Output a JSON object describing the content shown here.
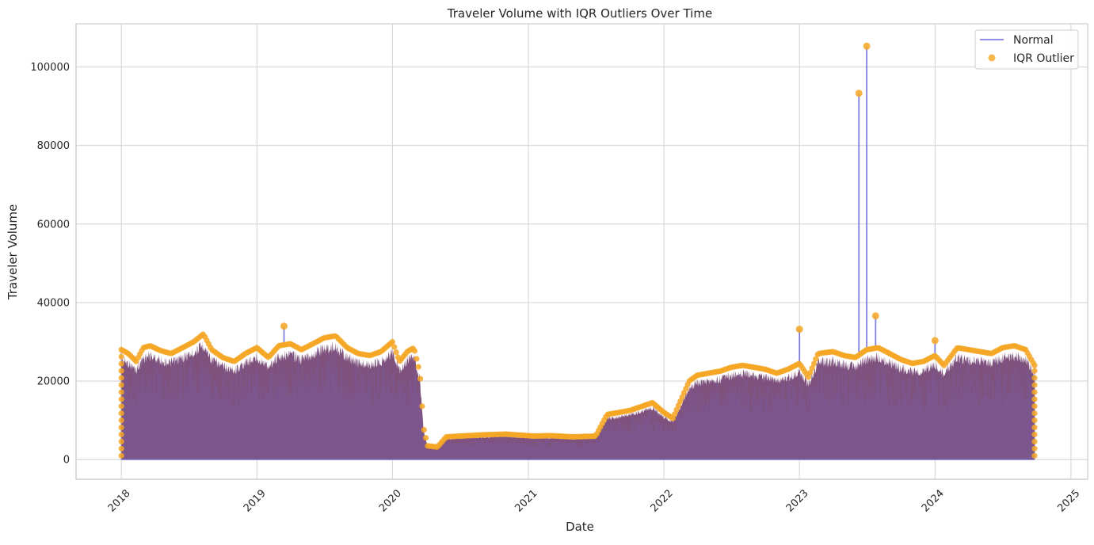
{
  "chart_data": {
    "type": "line",
    "title": "Traveler Volume with IQR Outliers Over Time",
    "xlabel": "Date",
    "ylabel": "Traveler Volume",
    "x_range": [
      "2017-09-01",
      "2025-02-15"
    ],
    "ylim": [
      -5000,
      111000
    ],
    "x_ticks": [
      "2018",
      "2019",
      "2020",
      "2021",
      "2022",
      "2023",
      "2024",
      "2025"
    ],
    "y_ticks": [
      0,
      20000,
      40000,
      60000,
      80000,
      100000
    ],
    "y_tick_labels": [
      "0",
      "20000",
      "40000",
      "60000",
      "80000",
      "100000"
    ],
    "grid": true,
    "legend_position": "top-right",
    "series": [
      {
        "name": "Normal",
        "kind": "line",
        "color": "#6b6bdd"
      },
      {
        "name": "IQR Outlier",
        "kind": "scatter",
        "color": "#f5a623"
      }
    ],
    "fill_color": "#7f527e",
    "upper_envelope": [
      [
        "2018-01-01",
        28000
      ],
      [
        "2018-01-20",
        27000
      ],
      [
        "2018-02-10",
        25000
      ],
      [
        "2018-03-01",
        28500
      ],
      [
        "2018-03-20",
        29000
      ],
      [
        "2018-04-15",
        27800
      ],
      [
        "2018-05-15",
        27000
      ],
      [
        "2018-06-15",
        28500
      ],
      [
        "2018-07-15",
        30000
      ],
      [
        "2018-08-10",
        32000
      ],
      [
        "2018-09-01",
        28000
      ],
      [
        "2018-10-01",
        26000
      ],
      [
        "2018-11-01",
        25000
      ],
      [
        "2018-12-01",
        27000
      ],
      [
        "2019-01-01",
        28500
      ],
      [
        "2019-02-01",
        26000
      ],
      [
        "2019-03-01",
        29000
      ],
      [
        "2019-04-01",
        29500
      ],
      [
        "2019-05-01",
        28000
      ],
      [
        "2019-06-01",
        29500
      ],
      [
        "2019-07-01",
        31000
      ],
      [
        "2019-08-01",
        31500
      ],
      [
        "2019-09-01",
        28500
      ],
      [
        "2019-10-01",
        27000
      ],
      [
        "2019-11-01",
        26500
      ],
      [
        "2019-12-01",
        27500
      ],
      [
        "2020-01-01",
        30000
      ],
      [
        "2020-01-20",
        25000
      ],
      [
        "2020-02-10",
        27500
      ],
      [
        "2020-02-28",
        28500
      ],
      [
        "2020-03-15",
        22000
      ],
      [
        "2020-03-25",
        8000
      ],
      [
        "2020-04-05",
        3500
      ],
      [
        "2020-05-01",
        3200
      ],
      [
        "2020-05-25",
        5800
      ],
      [
        "2020-07-01",
        6000
      ],
      [
        "2020-09-01",
        6300
      ],
      [
        "2020-11-01",
        6500
      ],
      [
        "2021-01-15",
        6000
      ],
      [
        "2021-03-01",
        6100
      ],
      [
        "2021-05-01",
        5800
      ],
      [
        "2021-07-01",
        6000
      ],
      [
        "2021-08-01",
        11500
      ],
      [
        "2021-09-01",
        12000
      ],
      [
        "2021-10-01",
        12500
      ],
      [
        "2021-11-01",
        13500
      ],
      [
        "2021-12-01",
        14500
      ],
      [
        "2022-01-01",
        12000
      ],
      [
        "2022-01-25",
        10500
      ],
      [
        "2022-02-10",
        14000
      ],
      [
        "2022-03-10",
        20000
      ],
      [
        "2022-04-01",
        21500
      ],
      [
        "2022-05-01",
        22000
      ],
      [
        "2022-06-01",
        22500
      ],
      [
        "2022-07-01",
        23500
      ],
      [
        "2022-08-01",
        24000
      ],
      [
        "2022-09-01",
        23500
      ],
      [
        "2022-10-01",
        23000
      ],
      [
        "2022-11-01",
        22000
      ],
      [
        "2022-12-01",
        23000
      ],
      [
        "2023-01-01",
        24500
      ],
      [
        "2023-01-25",
        21000
      ],
      [
        "2023-02-20",
        27000
      ],
      [
        "2023-04-01",
        27500
      ],
      [
        "2023-05-01",
        26500
      ],
      [
        "2023-06-01",
        26000
      ],
      [
        "2023-07-01",
        28000
      ],
      [
        "2023-08-01",
        28500
      ],
      [
        "2023-09-01",
        27000
      ],
      [
        "2023-10-01",
        25500
      ],
      [
        "2023-11-01",
        24500
      ],
      [
        "2023-12-01",
        25000
      ],
      [
        "2024-01-01",
        26500
      ],
      [
        "2024-01-25",
        24000
      ],
      [
        "2024-03-01",
        28500
      ],
      [
        "2024-04-01",
        28000
      ],
      [
        "2024-05-01",
        27500
      ],
      [
        "2024-06-01",
        27000
      ],
      [
        "2024-07-01",
        28500
      ],
      [
        "2024-08-01",
        29000
      ],
      [
        "2024-09-01",
        28000
      ],
      [
        "2024-09-25",
        24000
      ]
    ],
    "spikes": [
      [
        "2019-03-15",
        34000
      ],
      [
        "2023-01-01",
        33200
      ],
      [
        "2023-06-10",
        93300
      ],
      [
        "2023-07-01",
        105300
      ],
      [
        "2023-07-25",
        36600
      ],
      [
        "2024-01-01",
        30300
      ]
    ]
  }
}
